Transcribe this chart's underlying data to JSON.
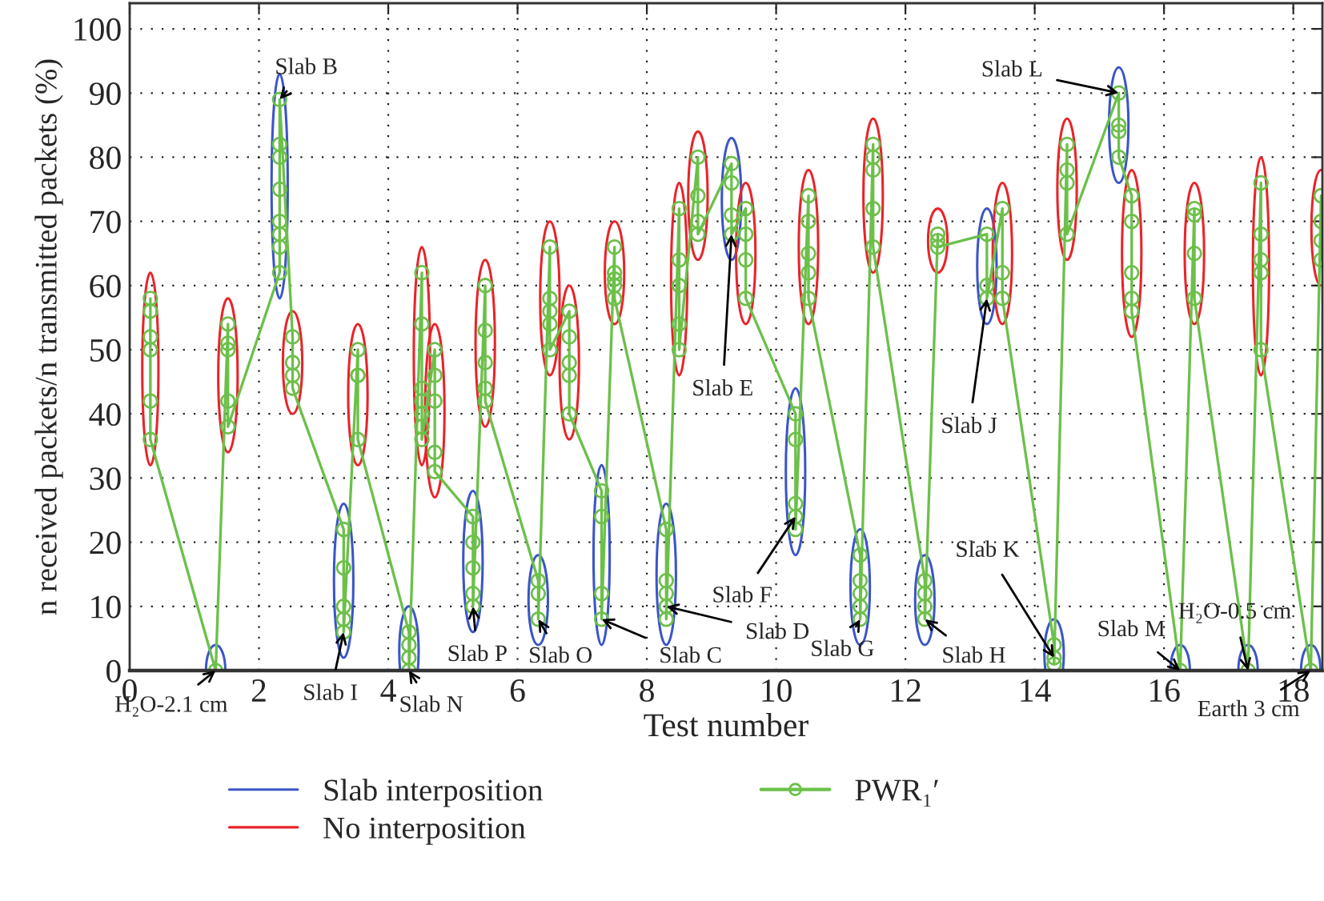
{
  "chart_data": {
    "type": "line",
    "xlabel": "Test number",
    "ylabel": "n received packets/n transmitted packets (%)",
    "xlim": [
      0,
      18.45
    ],
    "ylim": [
      0,
      104
    ],
    "xticks": [
      0,
      2,
      4,
      6,
      8,
      10,
      12,
      14,
      16,
      18
    ],
    "yticks": [
      0,
      10,
      20,
      30,
      40,
      50,
      60,
      70,
      80,
      90,
      100
    ],
    "grid": true,
    "legend": "bottom",
    "marker": "circle",
    "line_style": "solid",
    "series": [
      {
        "name": "PWR₁′",
        "color": "#6cc04a",
        "x": [
          0.32,
          0.32,
          0.32,
          0.32,
          0.32,
          0.32,
          1.33,
          1.52,
          1.52,
          1.52,
          1.52,
          1.52,
          2.32,
          2.32,
          2.32,
          2.32,
          2.32,
          2.32,
          2.32,
          2.32,
          2.52,
          2.52,
          2.52,
          2.52,
          3.31,
          3.31,
          3.31,
          3.31,
          3.31,
          3.53,
          3.53,
          3.53,
          3.53,
          4.32,
          4.32,
          4.32,
          4.32,
          4.52,
          4.52,
          4.52,
          4.52,
          4.52,
          4.52,
          4.52,
          4.72,
          4.72,
          4.72,
          4.72,
          4.72,
          5.31,
          5.31,
          5.31,
          5.31,
          5.31,
          5.5,
          5.5,
          5.5,
          5.5,
          5.5,
          6.32,
          6.32,
          6.32,
          6.5,
          6.5,
          6.5,
          6.5,
          6.5,
          6.8,
          6.8,
          6.8,
          6.8,
          6.8,
          7.3,
          7.3,
          7.3,
          7.3,
          7.5,
          7.5,
          7.5,
          7.5,
          7.5,
          8.3,
          8.3,
          8.3,
          8.3,
          8.3,
          8.5,
          8.5,
          8.5,
          8.5,
          8.5,
          8.79,
          8.79,
          8.79,
          8.79,
          9.31,
          9.31,
          9.31,
          9.31,
          9.53,
          9.53,
          9.53,
          9.53,
          10.3,
          10.3,
          10.3,
          10.3,
          10.3,
          10.5,
          10.5,
          10.5,
          10.5,
          10.5,
          11.3,
          11.3,
          11.3,
          11.3,
          11.3,
          11.5,
          11.5,
          11.5,
          11.5,
          11.5,
          12.3,
          12.3,
          12.3,
          12.3,
          12.5,
          12.5,
          12.5,
          13.26,
          13.26,
          13.26,
          13.5,
          13.5,
          13.5,
          14.3,
          14.3,
          14.3,
          14.5,
          14.5,
          14.5,
          14.5,
          15.3,
          15.3,
          15.3,
          15.3,
          15.5,
          15.5,
          15.5,
          15.5,
          15.5,
          16.25,
          16.47,
          16.47,
          16.47,
          16.47,
          17.3,
          17.5,
          17.5,
          17.5,
          17.5,
          17.5,
          18.27,
          18.43,
          18.43,
          18.43,
          18.43
        ],
        "values": [
          58,
          56,
          52,
          50,
          42,
          36,
          0,
          54,
          51,
          50,
          42,
          38,
          62,
          66,
          68,
          70,
          75,
          80,
          82,
          89,
          52,
          48,
          46,
          44,
          22,
          16,
          10,
          8,
          6,
          50,
          46,
          46,
          36,
          6,
          4,
          2,
          0,
          62,
          54,
          44,
          42,
          40,
          38,
          36,
          50,
          46,
          42,
          34,
          31,
          24,
          20,
          16,
          12,
          10,
          60,
          53,
          48,
          44,
          42,
          14,
          12,
          8,
          66,
          58,
          56,
          54,
          50,
          56,
          52,
          48,
          46,
          40,
          28,
          24,
          12,
          8,
          66,
          62,
          61,
          60,
          58,
          22,
          14,
          12,
          10,
          8,
          72,
          64,
          60,
          54,
          50,
          80,
          74,
          70,
          68,
          79,
          76,
          71,
          68,
          72,
          68,
          64,
          58,
          40,
          36,
          26,
          24,
          22,
          74,
          70,
          65,
          62,
          58,
          18,
          14,
          12,
          10,
          8,
          82,
          80,
          78,
          72,
          66,
          14,
          12,
          10,
          8,
          68,
          67,
          66,
          68,
          60,
          58,
          72,
          62,
          58,
          4,
          2,
          1,
          82,
          78,
          76,
          68,
          90,
          85,
          84,
          80,
          74,
          70,
          62,
          58,
          56,
          0,
          72,
          71,
          65,
          58,
          0,
          76,
          68,
          64,
          62,
          50,
          0,
          74,
          70,
          67,
          64
        ]
      },
      {
        "name": "Slab interposition",
        "color": "#3b55c8"
      },
      {
        "name": "No interposition",
        "color": "#e8242a"
      }
    ],
    "annotations": [
      {
        "text": "H₂O-2.1 cm",
        "x": 1.33,
        "y": 0
      },
      {
        "text": "Slab B",
        "x": 2.32,
        "y": 89
      },
      {
        "text": "Slab I",
        "x": 3.31,
        "y": 6
      },
      {
        "text": "Slab N",
        "x": 4.32,
        "y": 0
      },
      {
        "text": "Slab P",
        "x": 5.31,
        "y": 10
      },
      {
        "text": "Slab O",
        "x": 6.32,
        "y": 8
      },
      {
        "text": "Slab C",
        "x": 7.3,
        "y": 8
      },
      {
        "text": "Slab D",
        "x": 8.3,
        "y": 10
      },
      {
        "text": "Slab E",
        "x": 9.31,
        "y": 68
      },
      {
        "text": "Slab F",
        "x": 10.3,
        "y": 24
      },
      {
        "text": "Slab G",
        "x": 11.3,
        "y": 8
      },
      {
        "text": "Slab H",
        "x": 12.3,
        "y": 8
      },
      {
        "text": "Slab J",
        "x": 13.26,
        "y": 58
      },
      {
        "text": "Slab K",
        "x": 14.3,
        "y": 2
      },
      {
        "text": "Slab L",
        "x": 15.3,
        "y": 90
      },
      {
        "text": "Slab M",
        "x": 16.25,
        "y": 0
      },
      {
        "text": "H₂O-0.5 cm",
        "x": 17.3,
        "y": 0
      },
      {
        "text": "Earth 3 cm",
        "x": 18.27,
        "y": 0
      }
    ]
  }
}
